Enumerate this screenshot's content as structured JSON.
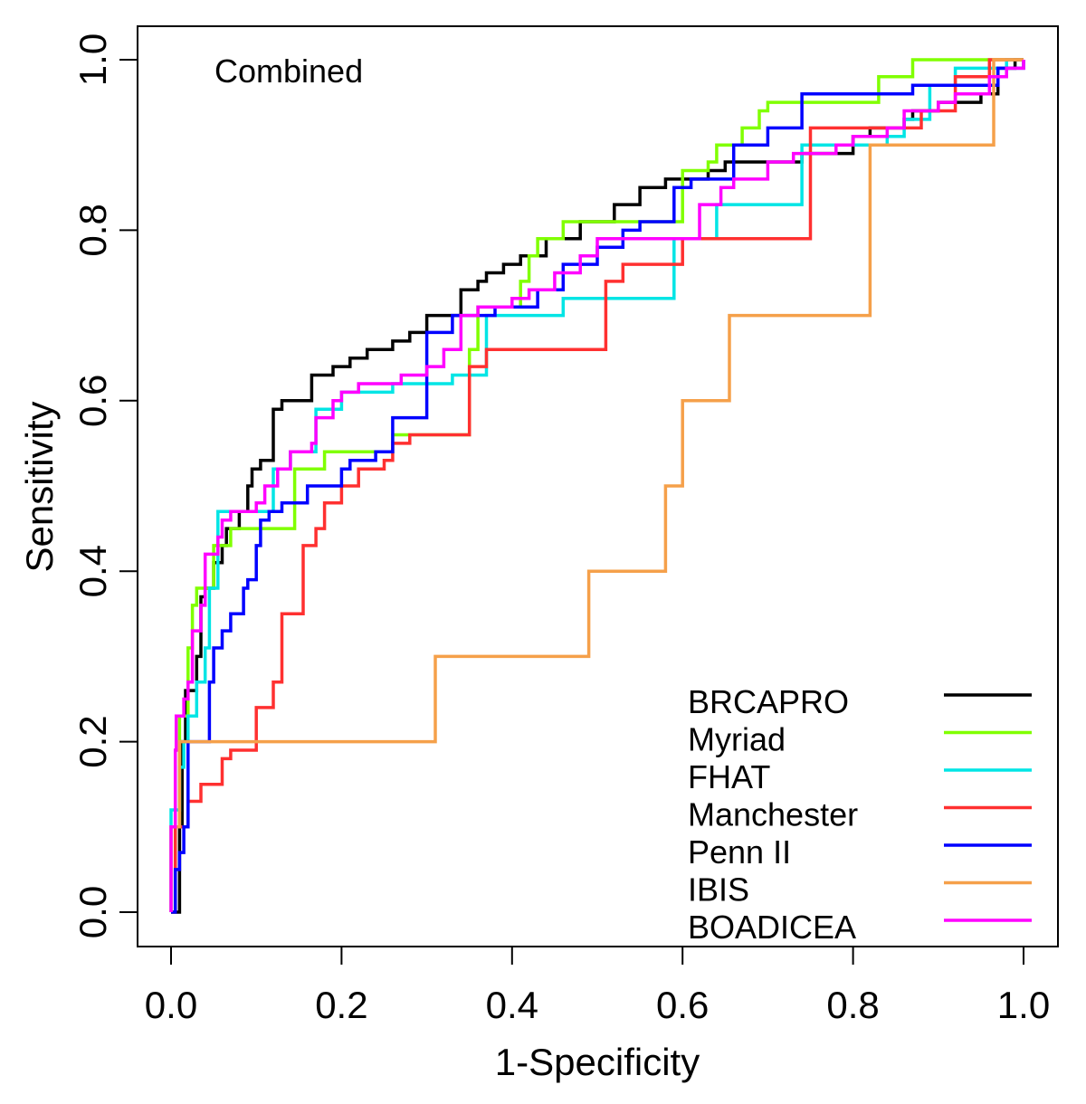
{
  "chart_data": {
    "type": "line",
    "title": "",
    "annotation": "Combined",
    "xlabel": "1-Specificity",
    "ylabel": "Sensitivity",
    "xlim": [
      0.0,
      1.0
    ],
    "ylim": [
      0.0,
      1.0
    ],
    "x_ticks": [
      "0.0",
      "0.2",
      "0.4",
      "0.6",
      "0.8",
      "1.0"
    ],
    "y_ticks": [
      "0.0",
      "0.2",
      "0.4",
      "0.6",
      "0.8",
      "1.0"
    ],
    "grid": false,
    "legend_position": "bottom-right",
    "step": true,
    "series": [
      {
        "name": "BRCAPRO",
        "color": "#000000",
        "points": [
          [
            0.0,
            0.0
          ],
          [
            0.01,
            0.0
          ],
          [
            0.01,
            0.1
          ],
          [
            0.013,
            0.2
          ],
          [
            0.017,
            0.26
          ],
          [
            0.03,
            0.3
          ],
          [
            0.035,
            0.37
          ],
          [
            0.04,
            0.38
          ],
          [
            0.05,
            0.41
          ],
          [
            0.06,
            0.43
          ],
          [
            0.065,
            0.45
          ],
          [
            0.08,
            0.47
          ],
          [
            0.09,
            0.5
          ],
          [
            0.095,
            0.52
          ],
          [
            0.105,
            0.53
          ],
          [
            0.12,
            0.59
          ],
          [
            0.13,
            0.6
          ],
          [
            0.165,
            0.63
          ],
          [
            0.19,
            0.64
          ],
          [
            0.21,
            0.65
          ],
          [
            0.23,
            0.66
          ],
          [
            0.26,
            0.67
          ],
          [
            0.28,
            0.68
          ],
          [
            0.3,
            0.7
          ],
          [
            0.34,
            0.73
          ],
          [
            0.36,
            0.74
          ],
          [
            0.37,
            0.75
          ],
          [
            0.39,
            0.76
          ],
          [
            0.41,
            0.77
          ],
          [
            0.44,
            0.79
          ],
          [
            0.48,
            0.81
          ],
          [
            0.52,
            0.83
          ],
          [
            0.55,
            0.85
          ],
          [
            0.58,
            0.86
          ],
          [
            0.63,
            0.87
          ],
          [
            0.65,
            0.88
          ],
          [
            0.74,
            0.89
          ],
          [
            0.8,
            0.91
          ],
          [
            0.82,
            0.92
          ],
          [
            0.86,
            0.93
          ],
          [
            0.87,
            0.94
          ],
          [
            0.9,
            0.95
          ],
          [
            0.95,
            0.96
          ],
          [
            0.97,
            0.97
          ],
          [
            0.97,
            0.99
          ],
          [
            0.99,
            1.0
          ],
          [
            1.0,
            1.0
          ]
        ]
      },
      {
        "name": "Myriad",
        "color": "#80ff00",
        "points": [
          [
            0.0,
            0.0
          ],
          [
            0.005,
            0.0
          ],
          [
            0.005,
            0.1
          ],
          [
            0.01,
            0.23
          ],
          [
            0.02,
            0.31
          ],
          [
            0.025,
            0.36
          ],
          [
            0.03,
            0.38
          ],
          [
            0.05,
            0.43
          ],
          [
            0.07,
            0.45
          ],
          [
            0.145,
            0.45
          ],
          [
            0.145,
            0.52
          ],
          [
            0.18,
            0.52
          ],
          [
            0.18,
            0.54
          ],
          [
            0.26,
            0.54
          ],
          [
            0.26,
            0.56
          ],
          [
            0.35,
            0.56
          ],
          [
            0.35,
            0.66
          ],
          [
            0.36,
            0.71
          ],
          [
            0.38,
            0.71
          ],
          [
            0.41,
            0.74
          ],
          [
            0.42,
            0.77
          ],
          [
            0.43,
            0.79
          ],
          [
            0.46,
            0.81
          ],
          [
            0.6,
            0.81
          ],
          [
            0.6,
            0.87
          ],
          [
            0.63,
            0.88
          ],
          [
            0.64,
            0.9
          ],
          [
            0.65,
            0.9
          ],
          [
            0.67,
            0.92
          ],
          [
            0.69,
            0.94
          ],
          [
            0.7,
            0.95
          ],
          [
            0.82,
            0.95
          ],
          [
            0.83,
            0.98
          ],
          [
            0.87,
            0.98
          ],
          [
            0.87,
            1.0
          ],
          [
            1.0,
            1.0
          ]
        ]
      },
      {
        "name": "FHAT",
        "color": "#00e5e5",
        "points": [
          [
            0.0,
            0.0
          ],
          [
            0.0,
            0.12
          ],
          [
            0.01,
            0.17
          ],
          [
            0.015,
            0.2
          ],
          [
            0.02,
            0.23
          ],
          [
            0.03,
            0.27
          ],
          [
            0.04,
            0.31
          ],
          [
            0.045,
            0.38
          ],
          [
            0.055,
            0.47
          ],
          [
            0.07,
            0.47
          ],
          [
            0.12,
            0.52
          ],
          [
            0.14,
            0.54
          ],
          [
            0.17,
            0.59
          ],
          [
            0.2,
            0.61
          ],
          [
            0.26,
            0.62
          ],
          [
            0.33,
            0.63
          ],
          [
            0.36,
            0.63
          ],
          [
            0.37,
            0.7
          ],
          [
            0.46,
            0.72
          ],
          [
            0.59,
            0.72
          ],
          [
            0.59,
            0.79
          ],
          [
            0.64,
            0.79
          ],
          [
            0.64,
            0.83
          ],
          [
            0.74,
            0.83
          ],
          [
            0.74,
            0.9
          ],
          [
            0.84,
            0.91
          ],
          [
            0.86,
            0.93
          ],
          [
            0.89,
            0.97
          ],
          [
            0.92,
            0.99
          ],
          [
            0.98,
            0.99
          ],
          [
            0.98,
            1.0
          ],
          [
            1.0,
            1.0
          ]
        ]
      },
      {
        "name": "Manchester",
        "color": "#ff3030",
        "points": [
          [
            0.0,
            0.0
          ],
          [
            0.005,
            0.0
          ],
          [
            0.005,
            0.1
          ],
          [
            0.02,
            0.13
          ],
          [
            0.035,
            0.15
          ],
          [
            0.06,
            0.18
          ],
          [
            0.07,
            0.19
          ],
          [
            0.1,
            0.19
          ],
          [
            0.1,
            0.24
          ],
          [
            0.12,
            0.27
          ],
          [
            0.13,
            0.35
          ],
          [
            0.155,
            0.35
          ],
          [
            0.155,
            0.43
          ],
          [
            0.17,
            0.45
          ],
          [
            0.18,
            0.48
          ],
          [
            0.2,
            0.5
          ],
          [
            0.22,
            0.52
          ],
          [
            0.25,
            0.53
          ],
          [
            0.26,
            0.55
          ],
          [
            0.28,
            0.56
          ],
          [
            0.35,
            0.58
          ],
          [
            0.35,
            0.64
          ],
          [
            0.37,
            0.64
          ],
          [
            0.37,
            0.66
          ],
          [
            0.51,
            0.66
          ],
          [
            0.51,
            0.74
          ],
          [
            0.53,
            0.76
          ],
          [
            0.58,
            0.76
          ],
          [
            0.6,
            0.79
          ],
          [
            0.75,
            0.79
          ],
          [
            0.75,
            0.92
          ],
          [
            0.88,
            0.92
          ],
          [
            0.88,
            0.94
          ],
          [
            0.92,
            0.98
          ],
          [
            0.96,
            0.98
          ],
          [
            0.96,
            1.0
          ],
          [
            1.0,
            1.0
          ]
        ]
      },
      {
        "name": "Penn II",
        "color": "#0000ff",
        "points": [
          [
            0.0,
            0.0
          ],
          [
            0.005,
            0.0
          ],
          [
            0.005,
            0.05
          ],
          [
            0.01,
            0.07
          ],
          [
            0.015,
            0.1
          ],
          [
            0.02,
            0.2
          ],
          [
            0.04,
            0.2
          ],
          [
            0.045,
            0.27
          ],
          [
            0.05,
            0.31
          ],
          [
            0.06,
            0.33
          ],
          [
            0.07,
            0.35
          ],
          [
            0.085,
            0.38
          ],
          [
            0.09,
            0.39
          ],
          [
            0.1,
            0.43
          ],
          [
            0.105,
            0.46
          ],
          [
            0.115,
            0.47
          ],
          [
            0.13,
            0.48
          ],
          [
            0.16,
            0.5
          ],
          [
            0.17,
            0.5
          ],
          [
            0.2,
            0.52
          ],
          [
            0.21,
            0.53
          ],
          [
            0.24,
            0.54
          ],
          [
            0.26,
            0.58
          ],
          [
            0.3,
            0.62
          ],
          [
            0.3,
            0.68
          ],
          [
            0.33,
            0.7
          ],
          [
            0.38,
            0.71
          ],
          [
            0.43,
            0.73
          ],
          [
            0.46,
            0.76
          ],
          [
            0.5,
            0.78
          ],
          [
            0.53,
            0.8
          ],
          [
            0.55,
            0.81
          ],
          [
            0.59,
            0.85
          ],
          [
            0.61,
            0.86
          ],
          [
            0.66,
            0.86
          ],
          [
            0.66,
            0.9
          ],
          [
            0.7,
            0.92
          ],
          [
            0.74,
            0.96
          ],
          [
            0.87,
            0.97
          ],
          [
            0.92,
            0.97
          ],
          [
            0.97,
            0.99
          ],
          [
            1.0,
            1.0
          ]
        ]
      },
      {
        "name": "IBIS",
        "color": "#f5a04a",
        "points": [
          [
            0.0,
            0.0
          ],
          [
            0.0,
            0.1
          ],
          [
            0.01,
            0.1
          ],
          [
            0.01,
            0.2
          ],
          [
            0.31,
            0.2
          ],
          [
            0.31,
            0.3
          ],
          [
            0.49,
            0.3
          ],
          [
            0.49,
            0.4
          ],
          [
            0.58,
            0.4
          ],
          [
            0.58,
            0.5
          ],
          [
            0.6,
            0.5
          ],
          [
            0.6,
            0.6
          ],
          [
            0.655,
            0.6
          ],
          [
            0.655,
            0.7
          ],
          [
            0.82,
            0.7
          ],
          [
            0.82,
            0.9
          ],
          [
            0.965,
            0.9
          ],
          [
            0.965,
            1.0
          ],
          [
            1.0,
            1.0
          ]
        ]
      },
      {
        "name": "BOADICEA",
        "color": "#ff00ff",
        "points": [
          [
            0.0,
            0.0
          ],
          [
            0.0,
            0.1
          ],
          [
            0.005,
            0.19
          ],
          [
            0.006,
            0.23
          ],
          [
            0.015,
            0.25
          ],
          [
            0.02,
            0.27
          ],
          [
            0.025,
            0.33
          ],
          [
            0.035,
            0.36
          ],
          [
            0.04,
            0.42
          ],
          [
            0.055,
            0.44
          ],
          [
            0.06,
            0.46
          ],
          [
            0.07,
            0.47
          ],
          [
            0.1,
            0.48
          ],
          [
            0.11,
            0.5
          ],
          [
            0.125,
            0.52
          ],
          [
            0.14,
            0.54
          ],
          [
            0.165,
            0.55
          ],
          [
            0.17,
            0.58
          ],
          [
            0.19,
            0.6
          ],
          [
            0.2,
            0.61
          ],
          [
            0.22,
            0.62
          ],
          [
            0.27,
            0.63
          ],
          [
            0.3,
            0.64
          ],
          [
            0.32,
            0.66
          ],
          [
            0.34,
            0.7
          ],
          [
            0.36,
            0.71
          ],
          [
            0.4,
            0.72
          ],
          [
            0.42,
            0.73
          ],
          [
            0.45,
            0.75
          ],
          [
            0.48,
            0.77
          ],
          [
            0.5,
            0.79
          ],
          [
            0.62,
            0.79
          ],
          [
            0.62,
            0.83
          ],
          [
            0.645,
            0.85
          ],
          [
            0.66,
            0.86
          ],
          [
            0.7,
            0.88
          ],
          [
            0.73,
            0.89
          ],
          [
            0.78,
            0.9
          ],
          [
            0.8,
            0.91
          ],
          [
            0.84,
            0.92
          ],
          [
            0.86,
            0.94
          ],
          [
            0.9,
            0.95
          ],
          [
            0.92,
            0.96
          ],
          [
            0.96,
            0.98
          ],
          [
            0.98,
            0.99
          ],
          [
            1.0,
            1.0
          ]
        ]
      }
    ]
  }
}
